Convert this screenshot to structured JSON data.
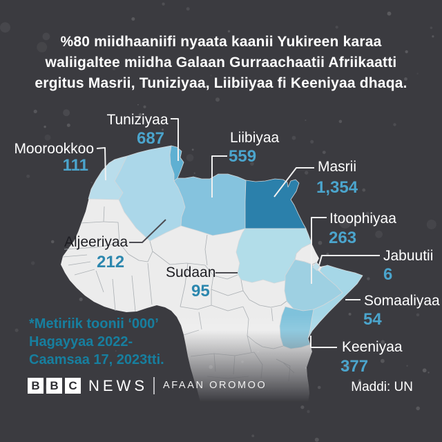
{
  "header": {
    "title_lines": [
      "%80 miidhaaniifi nyaata kaanii Yukireen karaa",
      "waliigaltee miidha Galaan Gurraachaatii Afriikaatti",
      "ergitus Masrii, Tuniziyaa, Liibiiyaa fi Keeniyaa dhaqa."
    ]
  },
  "chart_data": {
    "type": "choropleth-map",
    "region": "Africa",
    "unit_note": "Metiriik toonii ‘000’, Hagayyaa 2022 - Caamsaa 17, 2023",
    "countries": [
      {
        "name": "Moorookkoo",
        "value": "111",
        "fill": "#b9ddeb"
      },
      {
        "name": "Tuniziyaa",
        "value": "687",
        "fill": "#5fb0d2"
      },
      {
        "name": "Liibiyaa",
        "value": "559",
        "fill": "#85c3de"
      },
      {
        "name": "Masrii",
        "value": "1,354",
        "fill": "#2b80ab"
      },
      {
        "name": "Aljeeriyaa",
        "value": "212",
        "fill": "#abd7e9"
      },
      {
        "name": "Sudaan",
        "value": "95",
        "fill": "#b2dde9"
      },
      {
        "name": "Itoophiyaa",
        "value": "263",
        "fill": "#9ed0e2"
      },
      {
        "name": "Jabuutii",
        "value": "6",
        "fill": "#bfe0ec"
      },
      {
        "name": "Somaaliyaa",
        "value": "54",
        "fill": "#a6d7e7"
      },
      {
        "name": "Keeniyaa",
        "value": "377",
        "fill": "#7fc2db"
      }
    ]
  },
  "footnote": {
    "lines": [
      "*Metiriik toonii ‘000’",
      "Hagayyaa 2022-",
      "Caamsaa 17, 2023tti."
    ]
  },
  "footer": {
    "logo_blocks": [
      "B",
      "B",
      "C"
    ],
    "logo_news": "NEWS",
    "logo_brand": "AFAAN OROMOO",
    "source": "Maddi: UN"
  },
  "colors": {
    "background": "#3b3b40",
    "land": "#ececec",
    "value_text": "#4ba5cd",
    "value_text_on_land": "#2c87ae",
    "footnote_text": "#177f9f",
    "label_light": "#ffffff",
    "label_dark": "#1d1d22"
  }
}
